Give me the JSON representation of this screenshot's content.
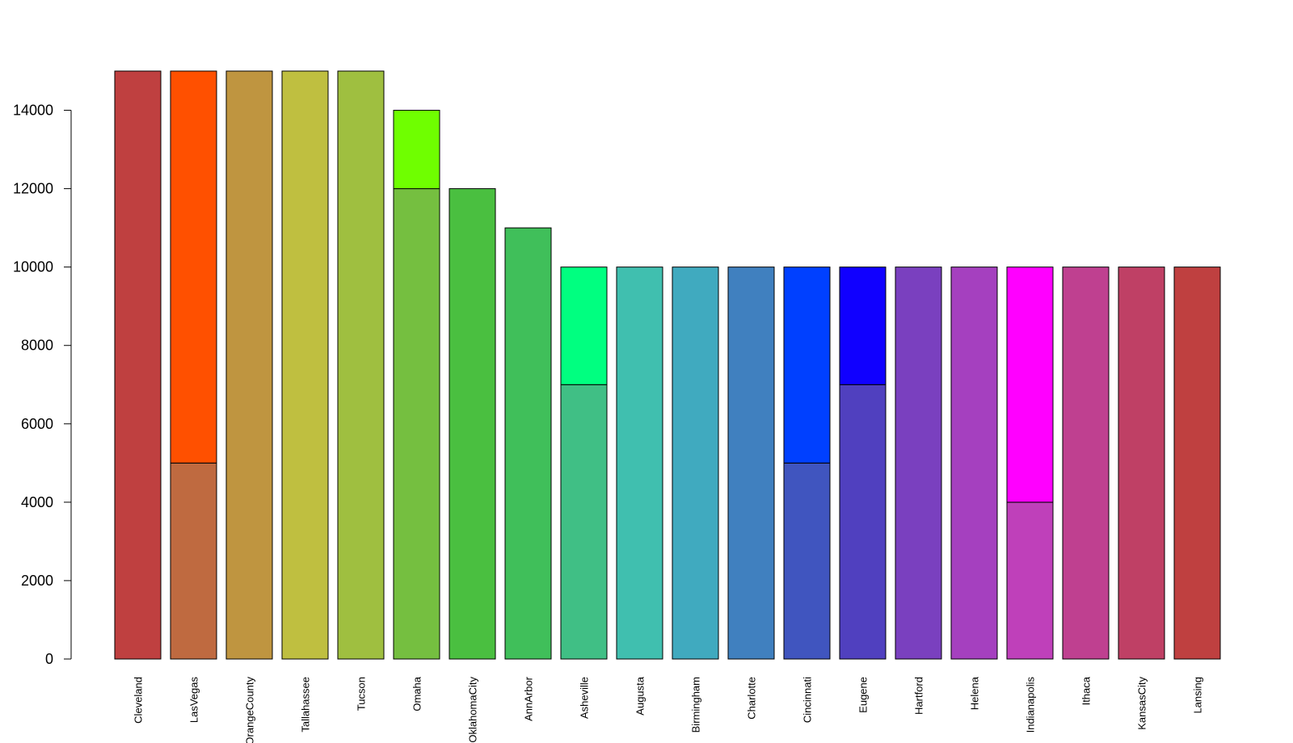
{
  "chart_data": {
    "type": "bar",
    "stacked": true,
    "title": "",
    "xlabel": "",
    "ylabel": "",
    "ylim": [
      0,
      15000
    ],
    "yticks": [
      0,
      2000,
      4000,
      6000,
      8000,
      10000,
      12000,
      14000
    ],
    "grid": false,
    "legend": "none",
    "categories": [
      "Cleveland",
      "LasVegas",
      "OrangeCounty",
      "Tallahassee",
      "Tucson",
      "Omaha",
      "OklahomaCity",
      "AnnArbor",
      "Asheville",
      "Augusta",
      "Birmingham",
      "Charlotte",
      "Cincinnati",
      "Eugene",
      "Hartford",
      "Helena",
      "Indianapolis",
      "Ithaca",
      "KansasCity",
      "Lansing"
    ],
    "series": [
      {
        "values": [
          15000,
          5000,
          15000,
          15000,
          15000,
          12000,
          12000,
          11000,
          7000,
          10000,
          10000,
          10000,
          5000,
          7000,
          10000,
          10000,
          4000,
          10000,
          10000,
          10000
        ],
        "colors": [
          "#BF4040",
          "#BF6A40",
          "#BF9540",
          "#BFBF40",
          "#9FBF40",
          "#75BF40",
          "#4ABF40",
          "#40BF5A",
          "#40BF85",
          "#40BFAF",
          "#40AABF",
          "#4080BF",
          "#4055BF",
          "#5040BF",
          "#7A40BF",
          "#A540BF",
          "#BF40BA",
          "#BF4090",
          "#BF4065",
          "#BF4040"
        ]
      },
      {
        "values": [
          0,
          10000,
          0,
          0,
          0,
          2000,
          0,
          0,
          3000,
          0,
          0,
          0,
          5000,
          3000,
          0,
          0,
          6000,
          0,
          0,
          0
        ],
        "colors": [
          "#FF0000",
          "#FF5000",
          "#FF9F00",
          "#FFEE00",
          "#BFFF00",
          "#6FFF00",
          "#1FFF00",
          "#00FF30",
          "#00FF80",
          "#00FFCF",
          "#00DFFF",
          "#008FFF",
          "#0040FF",
          "#1000FF",
          "#6000FF",
          "#AF00FF",
          "#FF00FF",
          "#FF00AF",
          "#FF0060",
          "#FF0010"
        ]
      }
    ]
  }
}
